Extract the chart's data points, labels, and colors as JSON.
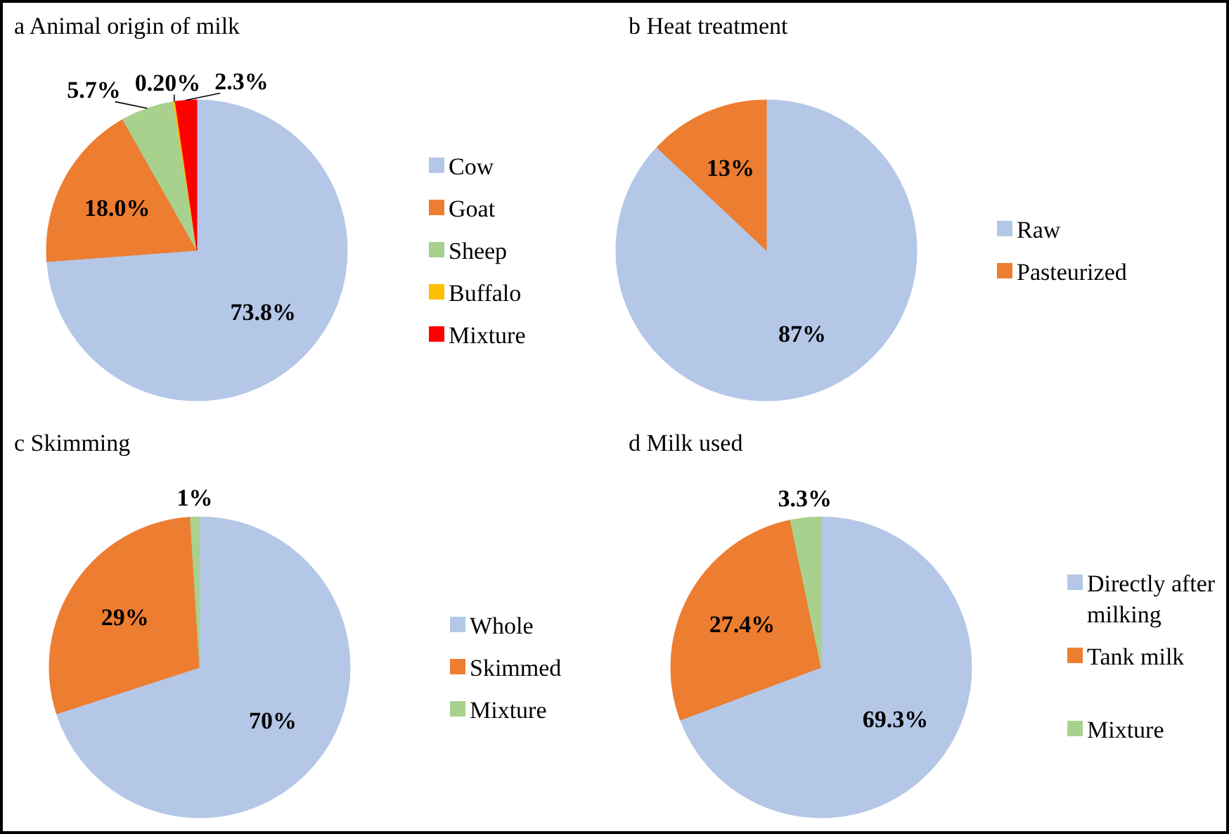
{
  "chart_data": [
    {
      "type": "pie",
      "title": "a Animal origin of milk",
      "categories": [
        "Cow",
        "Goat",
        "Sheep",
        "Buffalo",
        "Mixture"
      ],
      "values": [
        73.8,
        18.0,
        5.7,
        0.2,
        2.3
      ],
      "value_labels": [
        "73.8%",
        "18.0%",
        "5.7%",
        "0.20%",
        "2.3%"
      ],
      "colors": [
        "#b4c7e7",
        "#ed7d31",
        "#a9d18e",
        "#ffc000",
        "#ff0000"
      ],
      "legend": "right"
    },
    {
      "type": "pie",
      "title": "b Heat treatment",
      "categories": [
        "Raw",
        "Pasteurized"
      ],
      "values": [
        87,
        13
      ],
      "value_labels": [
        "87%",
        "13%"
      ],
      "colors": [
        "#b4c7e7",
        "#ed7d31"
      ],
      "legend": "right"
    },
    {
      "type": "pie",
      "title": "c Skimming",
      "categories": [
        "Whole",
        "Skimmed",
        "Mixture"
      ],
      "values": [
        70,
        29,
        1
      ],
      "value_labels": [
        "70%",
        "29%",
        "1%"
      ],
      "colors": [
        "#b4c7e7",
        "#ed7d31",
        "#a9d18e"
      ],
      "legend": "right"
    },
    {
      "type": "pie",
      "title": "d Milk used",
      "categories": [
        "Directly after milking",
        "Tank milk",
        "Mixture"
      ],
      "values": [
        69.3,
        27.4,
        3.3
      ],
      "value_labels": [
        "69.3%",
        "27.4%",
        "3.3%"
      ],
      "colors": [
        "#b4c7e7",
        "#ed7d31",
        "#a9d18e"
      ],
      "legend": "right"
    }
  ]
}
